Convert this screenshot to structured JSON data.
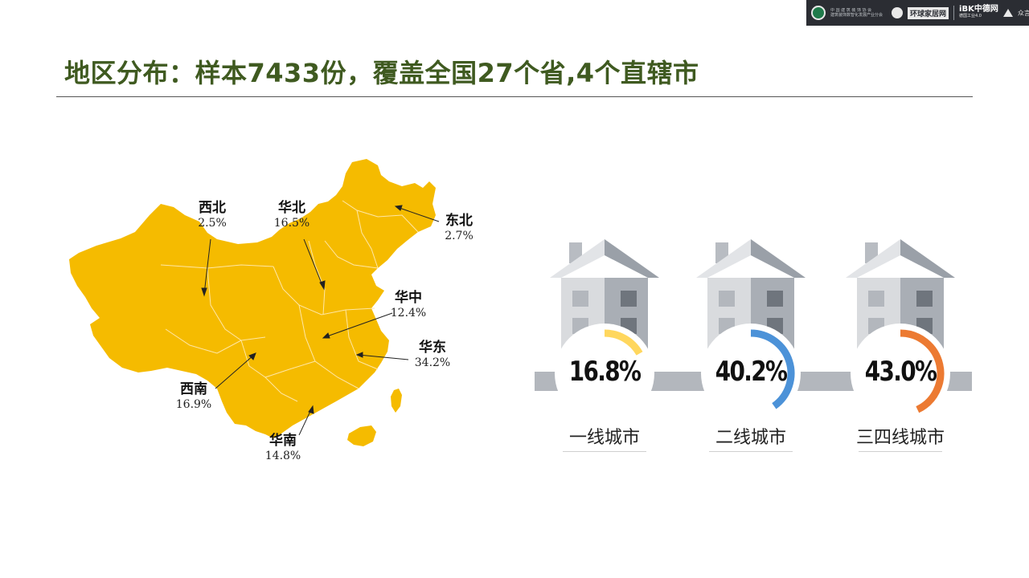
{
  "logos": {
    "org_line1": "中 国 建 筑 装 饰 协 会",
    "org_line2": "建筑装饰数智化发展产业分会",
    "partner_badge": "环球家居网",
    "ibk_text": "iBK中德网",
    "ibk_sub": "德国工业4.0",
    "brand": "众言科技"
  },
  "title": "地区分布：样本7433份，覆盖全国27个省,4个直辖市",
  "colors": {
    "title": "#3f5a20",
    "map_fill": "#f5bb00",
    "tier1": "#ffd75e",
    "tier2": "#4c92d8",
    "tier3": "#ec7a32"
  },
  "regions": [
    {
      "name": "西北",
      "value": "2.5%"
    },
    {
      "name": "华北",
      "value": "16.5%"
    },
    {
      "name": "东北",
      "value": "2.7%"
    },
    {
      "name": "华中",
      "value": "12.4%"
    },
    {
      "name": "华东",
      "value": "34.2%"
    },
    {
      "name": "西南",
      "value": "16.9%"
    },
    {
      "name": "华南",
      "value": "14.8%"
    }
  ],
  "city_tiers": [
    {
      "label": "一线城市",
      "value_text": "16.8%",
      "fraction": 0.168,
      "color": "#ffd75e"
    },
    {
      "label": "二线城市",
      "value_text": "40.2%",
      "fraction": 0.402,
      "color": "#4c92d8"
    },
    {
      "label": "三四线城市",
      "value_text": "43.0%",
      "fraction": 0.43,
      "color": "#ec7a32"
    }
  ]
}
